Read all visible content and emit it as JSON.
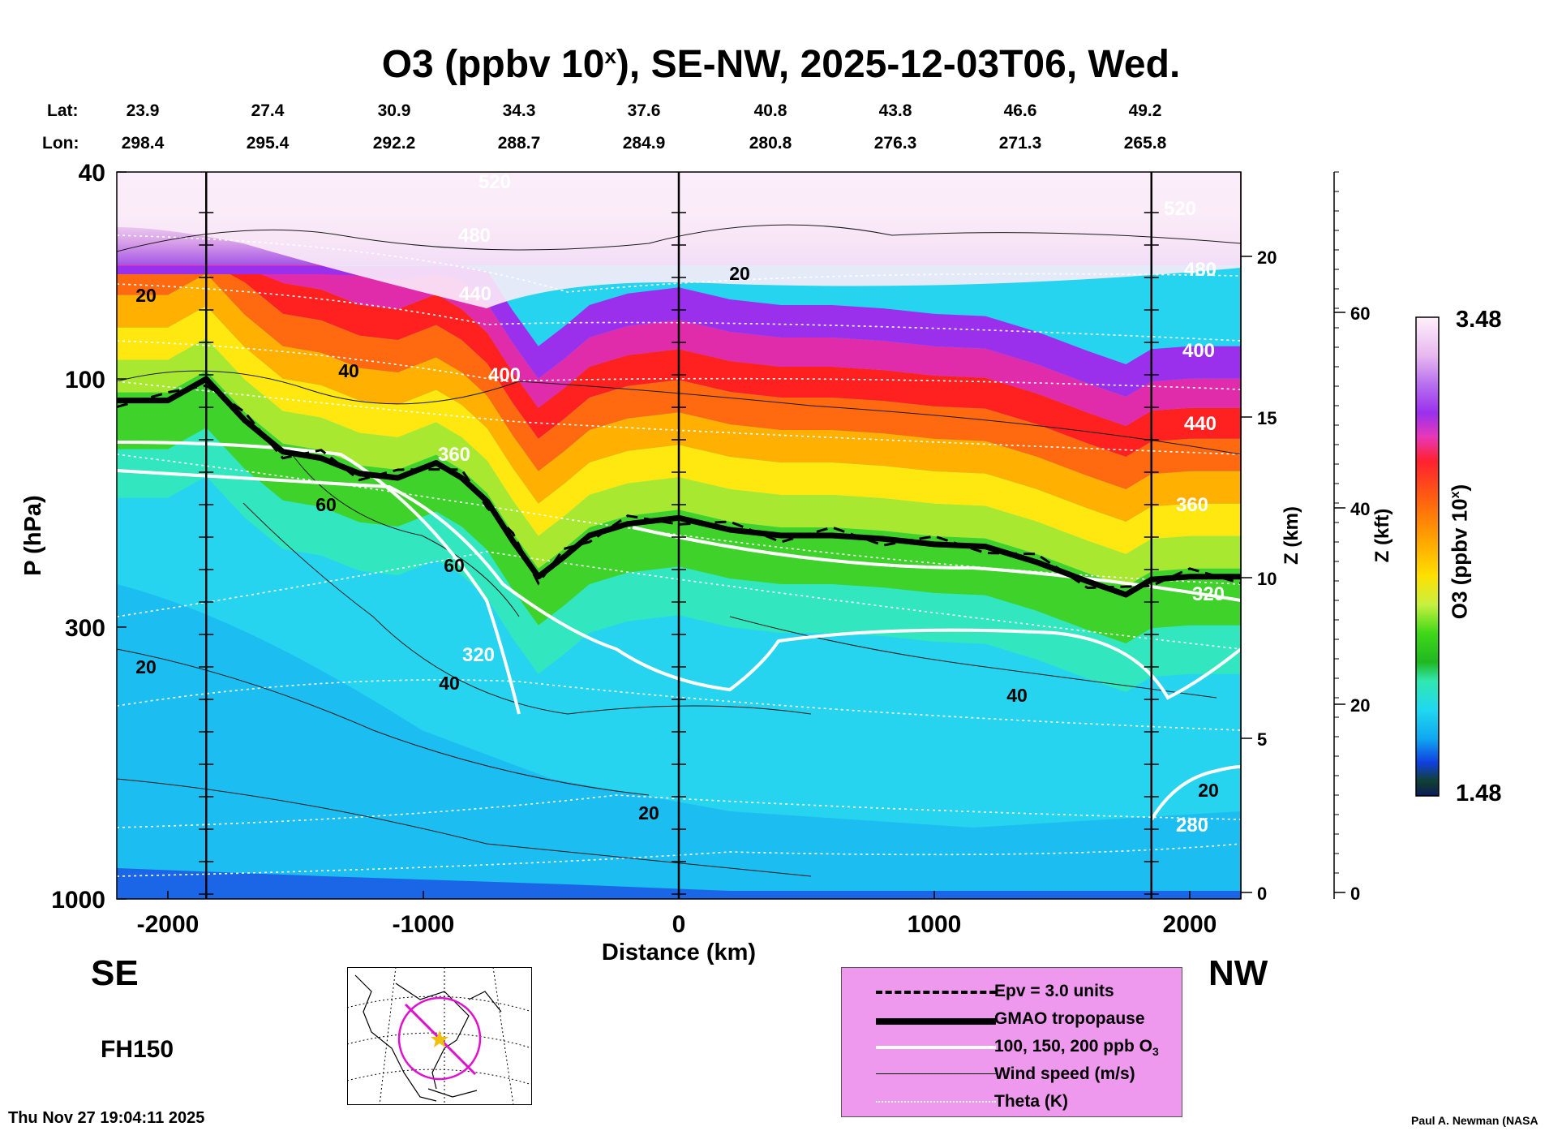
{
  "title": {
    "main": "O3 (ppbv 10",
    "sup": "x",
    "rest": "), SE-NW, 2025-12-03T06, Wed."
  },
  "header": {
    "lat_label": "Lat:",
    "lon_label": "Lon:",
    "lat": [
      "23.9",
      "27.4",
      "30.9",
      "34.3",
      "37.6",
      "40.8",
      "43.8",
      "46.6",
      "49.2"
    ],
    "lon": [
      "298.4",
      "295.4",
      "292.2",
      "288.7",
      "284.9",
      "280.8",
      "276.3",
      "271.3",
      "265.8"
    ]
  },
  "axes": {
    "xlabel": "Distance (km)",
    "ylabel": "P (hPa)",
    "z_km_label": "Z (km)",
    "z_kft_label": "Z (kft)",
    "x_ticks": [
      "-2000",
      "-1000",
      "0",
      "1000",
      "2000"
    ],
    "p_ticks": [
      "40",
      "100",
      "300",
      "1000"
    ],
    "z_km_ticks": [
      "0",
      "5",
      "10",
      "15",
      "20"
    ],
    "z_kft_ticks": [
      "0",
      "20",
      "40",
      "60"
    ]
  },
  "directions": {
    "left": "SE",
    "right": "NW"
  },
  "forecast_hour": "FH150",
  "timestamp": "Thu Nov 27 19:04:11 2025",
  "credit": "Paul A. Newman (NASA",
  "colorbar": {
    "label": "O3 (ppbv 10",
    "label_sup": "x",
    "label_close": ")",
    "max": "3.48",
    "min": "1.48"
  },
  "legend": [
    {
      "style": "dashed",
      "text": "Epv = 3.0 units"
    },
    {
      "style": "thick",
      "text": "GMAO tropopause"
    },
    {
      "style": "white",
      "text": "100, 150, 200 ppb O",
      "sub": "3"
    },
    {
      "style": "thin",
      "text": "Wind speed (m/s)"
    },
    {
      "style": "dotted",
      "text": "Theta (K)"
    }
  ],
  "contour_labels": {
    "theta": [
      "520",
      "480",
      "440",
      "400",
      "360",
      "320",
      "400",
      "440",
      "360",
      "320",
      "280",
      "520",
      "480"
    ],
    "wind": [
      "20",
      "40",
      "60",
      "60",
      "20",
      "40",
      "20",
      "20",
      "40",
      "20"
    ]
  },
  "chart_data": {
    "type": "heatmap",
    "title": "O3 (ppbv 10^x), SE-NW, 2025-12-03T06, Wed.",
    "xlabel": "Distance (km)",
    "ylabel": "P (hPa)",
    "xlim": [
      -2200,
      2200
    ],
    "ylim": [
      1000,
      40
    ],
    "yscale": "log",
    "colorbar_range": [
      1.48,
      3.48
    ],
    "tropopause_hpa": {
      "x": [
        -2200,
        -2000,
        -1850,
        -1700,
        -1550,
        -1400,
        -1250,
        -1100,
        -950,
        -850,
        -750,
        -650,
        -550,
        -450,
        -350,
        -200,
        0,
        200,
        400,
        600,
        800,
        1000,
        1200,
        1400,
        1600,
        1750,
        1850,
        2000,
        2200
      ],
      "p": [
        110,
        110,
        100,
        120,
        138,
        142,
        152,
        155,
        145,
        155,
        172,
        205,
        240,
        220,
        200,
        190,
        185,
        195,
        200,
        200,
        203,
        208,
        210,
        225,
        245,
        260,
        243,
        240,
        240
      ]
    },
    "series": [
      {
        "name": "Epv = 3.0 units"
      },
      {
        "name": "GMAO tropopause"
      },
      {
        "name": "100, 150, 200 ppb O3"
      },
      {
        "name": "Wind speed (m/s)"
      },
      {
        "name": "Theta (K)"
      }
    ]
  }
}
